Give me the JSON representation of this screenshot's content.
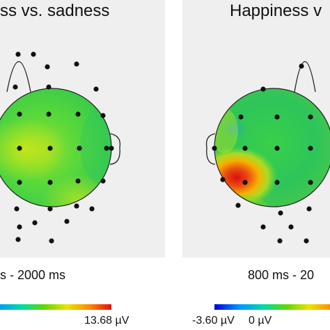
{
  "panels": {
    "left": {
      "title": "ss vs. sadness",
      "time_window": "s - 2000 ms"
    },
    "right": {
      "title": "Happiness v",
      "time_window": "800 ms - 20"
    }
  },
  "colorbar": {
    "left_max_label": "13.68 µV",
    "right_min_label": "-3.60 µV",
    "right_zero_label": "0 µV",
    "colormap": [
      "#0000d8",
      "#00a0ff",
      "#00e070",
      "#7dd800",
      "#f0e000",
      "#ff8000",
      "#e01010"
    ]
  },
  "colors": {
    "scalp_base": "#35c83c",
    "electrode": "#111111",
    "hotspot": "#e02010",
    "panel_background": "#efefef"
  }
}
